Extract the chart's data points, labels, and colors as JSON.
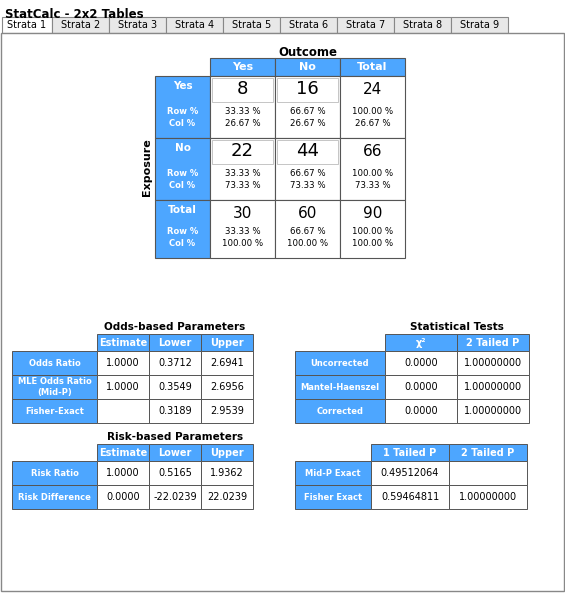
{
  "title": "StatCalc - 2x2 Tables",
  "tabs": [
    "Strata 1",
    "Strata 2",
    "Strata 3",
    "Strata 4",
    "Strata 5",
    "Strata 6",
    "Strata 7",
    "Strata 8",
    "Strata 9"
  ],
  "blue": "#4DA6FF",
  "white": "#FFFFFF",
  "light_gray": "#E8E8E8",
  "black": "#000000",
  "outcome_label": "Outcome",
  "exposure_label": "Exposure",
  "outcome_cols": [
    "Yes",
    "No",
    "Total"
  ],
  "exposure_rows": [
    "Yes",
    "No",
    "Total"
  ],
  "cell_values": [
    [
      8,
      16,
      24
    ],
    [
      22,
      44,
      66
    ],
    [
      30,
      60,
      90
    ]
  ],
  "row_pcts": [
    [
      "33.33 %",
      "66.67 %",
      "100.00 %"
    ],
    [
      "33.33 %",
      "66.67 %",
      "100.00 %"
    ],
    [
      "33.33 %",
      "66.67 %",
      "100.00 %"
    ]
  ],
  "col_pcts": [
    [
      "26.67 %",
      "26.67 %",
      "26.67 %"
    ],
    [
      "73.33 %",
      "73.33 %",
      "73.33 %"
    ],
    [
      "100.00 %",
      "100.00 %",
      "100.00 %"
    ]
  ],
  "odds_title": "Odds-based Parameters",
  "odds_headers": [
    "Estimate",
    "Lower",
    "Upper"
  ],
  "odds_rows": [
    [
      "Odds Ratio",
      "1.0000",
      "0.3712",
      "2.6941"
    ],
    [
      "MLE Odds Ratio\n(Mid-P)",
      "1.0000",
      "0.3549",
      "2.6956"
    ],
    [
      "Fisher-Exact",
      "",
      "0.3189",
      "2.9539"
    ]
  ],
  "stat_title": "Statistical Tests",
  "stat_headers": [
    "χ²",
    "2 Tailed P"
  ],
  "stat_rows": [
    [
      "Uncorrected",
      "0.0000",
      "1.00000000"
    ],
    [
      "Mantel-Haenszel",
      "0.0000",
      "1.00000000"
    ],
    [
      "Corrected",
      "0.0000",
      "1.00000000"
    ]
  ],
  "risk_title": "Risk-based Parameters",
  "risk_headers": [
    "Estimate",
    "Lower",
    "Upper"
  ],
  "risk_rows": [
    [
      "Risk Ratio",
      "1.0000",
      "0.5165",
      "1.9362"
    ],
    [
      "Risk Difference",
      "0.0000",
      "-22.0239",
      "22.0239"
    ]
  ],
  "exact_headers": [
    "1 Tailed P",
    "2 Tailed P"
  ],
  "exact_rows": [
    [
      "Mid-P Exact",
      "0.49512064",
      ""
    ],
    [
      "Fisher Exact",
      "0.59464811",
      "1.00000000"
    ]
  ]
}
